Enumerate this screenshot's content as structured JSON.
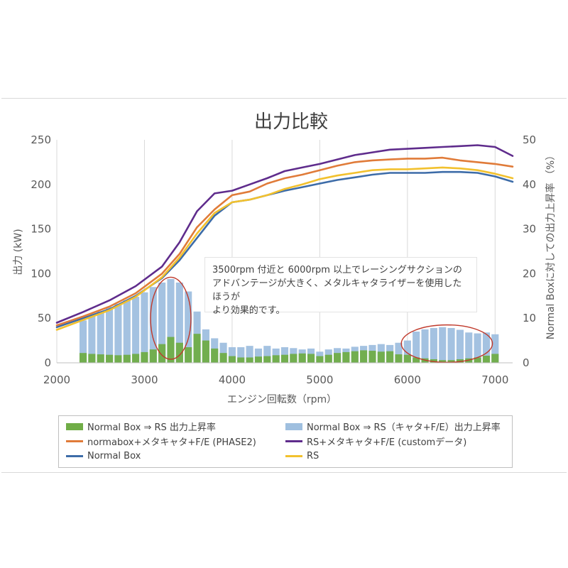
{
  "chart_data": {
    "type": "line",
    "title": "出力比較",
    "xlabel": "エンジン回転数（rpm）",
    "ylabel": "出力 (kW)",
    "y2label": "Normal Boxに対しての出力上昇率 （%）",
    "xlim": [
      2000,
      7200
    ],
    "ylim": [
      0,
      250
    ],
    "y2lim": [
      0,
      50
    ],
    "x_ticks": [
      "2000",
      "3000",
      "4000",
      "5000",
      "6000",
      "7000"
    ],
    "y_ticks": [
      "0",
      "50",
      "100",
      "150",
      "200",
      "250"
    ],
    "y2_ticks": [
      "0",
      "10",
      "20",
      "30",
      "40",
      "50"
    ],
    "grid": "vertical",
    "legend_position": "bottom",
    "series": [
      {
        "name": "Normal Box",
        "color": "#3d6ca8",
        "axis": "left",
        "x": [
          2000,
          2300,
          2600,
          2900,
          3200,
          3400,
          3600,
          3800,
          4000,
          4200,
          4400,
          4600,
          4800,
          5000,
          5200,
          5400,
          5600,
          5800,
          6000,
          6200,
          6400,
          6600,
          6800,
          7000,
          7200
        ],
        "y": [
          40,
          50,
          60,
          75,
          95,
          115,
          140,
          165,
          180,
          183,
          188,
          193,
          197,
          201,
          205,
          208,
          211,
          213,
          213,
          213,
          214,
          214,
          213,
          209,
          203
        ]
      },
      {
        "name": "RS",
        "color": "#f2c12e",
        "axis": "left",
        "x": [
          2000,
          2300,
          2600,
          2900,
          3200,
          3400,
          3600,
          3800,
          4000,
          4200,
          4400,
          4600,
          4800,
          5000,
          5200,
          5400,
          5600,
          5800,
          6000,
          6200,
          6400,
          6600,
          6800,
          7000,
          7200
        ],
        "y": [
          37,
          48,
          59,
          74,
          96,
          118,
          145,
          168,
          180,
          183,
          188,
          195,
          200,
          206,
          210,
          213,
          216,
          217,
          217,
          218,
          219,
          218,
          216,
          212,
          207
        ]
      },
      {
        "name": "normabox+メタキャタ+F/E (PHASE2)",
        "color": "#e07b39",
        "axis": "left",
        "x": [
          2000,
          2300,
          2600,
          2900,
          3200,
          3400,
          3600,
          3800,
          4000,
          4200,
          4400,
          4600,
          4800,
          5000,
          5200,
          5400,
          5600,
          5800,
          6000,
          6200,
          6400,
          6600,
          6800,
          7000,
          7200
        ],
        "y": [
          42,
          52,
          63,
          78,
          100,
          122,
          152,
          172,
          188,
          192,
          201,
          207,
          211,
          216,
          221,
          225,
          227,
          228,
          229,
          229,
          230,
          227,
          225,
          223,
          220
        ]
      },
      {
        "name": "RS+メタキャタ+F/E (customデータ)",
        "color": "#5f2c8c",
        "axis": "left",
        "x": [
          2000,
          2300,
          2600,
          2900,
          3200,
          3400,
          3600,
          3800,
          4000,
          4200,
          4400,
          4600,
          4800,
          5000,
          5200,
          5400,
          5600,
          5800,
          6000,
          6200,
          6400,
          6600,
          6800,
          7000,
          7200
        ],
        "y": [
          45,
          57,
          70,
          86,
          108,
          135,
          170,
          190,
          193,
          200,
          207,
          215,
          219,
          223,
          228,
          233,
          236,
          239,
          240,
          241,
          242,
          243,
          244,
          242,
          232
        ]
      },
      {
        "name": "Normal Box ⇒ RS 出力上昇率",
        "color": "#70ad47",
        "axis": "right",
        "type": "bar",
        "x": [
          2300,
          2400,
          2500,
          2600,
          2700,
          2800,
          2900,
          3000,
          3100,
          3200,
          3300,
          3400,
          3500,
          3600,
          3700,
          3800,
          3900,
          4000,
          4100,
          4200,
          4300,
          4400,
          4500,
          4600,
          4700,
          4800,
          4900,
          5000,
          5100,
          5200,
          5300,
          5400,
          5500,
          5600,
          5700,
          5800,
          5900,
          6000,
          6100,
          6200,
          6300,
          6400,
          6500,
          6600,
          6700,
          6800,
          6900,
          7000
        ],
        "y": [
          2.2,
          2.0,
          1.9,
          1.8,
          1.7,
          1.8,
          2.0,
          2.4,
          3.0,
          4.2,
          5.8,
          4.5,
          3.5,
          6.5,
          5.0,
          3.2,
          2.2,
          1.5,
          1.2,
          1.2,
          1.4,
          1.5,
          1.7,
          1.8,
          2.0,
          2.1,
          2.0,
          1.5,
          1.8,
          2.2,
          2.4,
          2.6,
          2.8,
          2.7,
          2.5,
          2.6,
          1.9,
          1.8,
          1.2,
          1.0,
          0.8,
          0.6,
          0.6,
          0.8,
          1.0,
          1.2,
          1.6,
          2.0
        ]
      },
      {
        "name": "Normal Box ⇒ RS（キャタ+F/E）出力上昇率",
        "color": "#9fbfdf",
        "axis": "right",
        "type": "bar",
        "x": [
          2300,
          2400,
          2500,
          2600,
          2700,
          2800,
          2900,
          3000,
          3100,
          3200,
          3300,
          3400,
          3500,
          3600,
          3700,
          3800,
          3900,
          4000,
          4100,
          4200,
          4300,
          4400,
          4500,
          4600,
          4700,
          4800,
          4900,
          5000,
          5100,
          5200,
          5300,
          5400,
          5500,
          5600,
          5700,
          5800,
          5900,
          6000,
          6100,
          6200,
          6300,
          6400,
          6500,
          6600,
          6700,
          6800,
          6900,
          7000
        ],
        "y": [
          9.5,
          10.5,
          11.5,
          12.5,
          13.2,
          14.0,
          14.8,
          15.8,
          17.0,
          18.0,
          18.8,
          18.0,
          16.0,
          11.5,
          7.5,
          5.5,
          4.5,
          3.5,
          3.5,
          3.8,
          3.2,
          3.8,
          3.2,
          3.5,
          3.3,
          3.0,
          3.2,
          2.5,
          3.0,
          3.3,
          3.2,
          3.6,
          3.8,
          4.0,
          4.2,
          4.0,
          4.5,
          5.0,
          7.0,
          7.5,
          7.8,
          8.0,
          7.8,
          7.4,
          6.8,
          6.6,
          6.8,
          6.4
        ]
      }
    ],
    "annotations": [
      "3500rpm 付近と 6000rpm 以上でレーシングサクションの\nアドバンテージが大きく、メタルキャタライザーを使用したほうが\nより効果的です。"
    ],
    "highlight_ellipses": [
      {
        "x_center": 3300,
        "y2_center": 10,
        "x_radius": 230,
        "y2_radius": 9.2,
        "color": "#c0392b"
      },
      {
        "x_center": 6450,
        "y2_center": 4.3,
        "x_radius": 520,
        "y2_radius": 4.2,
        "color": "#c0392b"
      }
    ],
    "legend": [
      [
        "Normal Box ⇒ RS 出力上昇率",
        "Normal Box ⇒ RS（キャタ+F/E）出力上昇率"
      ],
      [
        "normabox+メタキャタ+F/E (PHASE2)",
        "RS+メタキャタ+F/E (customデータ)"
      ],
      [
        "Normal Box",
        "RS"
      ]
    ]
  }
}
